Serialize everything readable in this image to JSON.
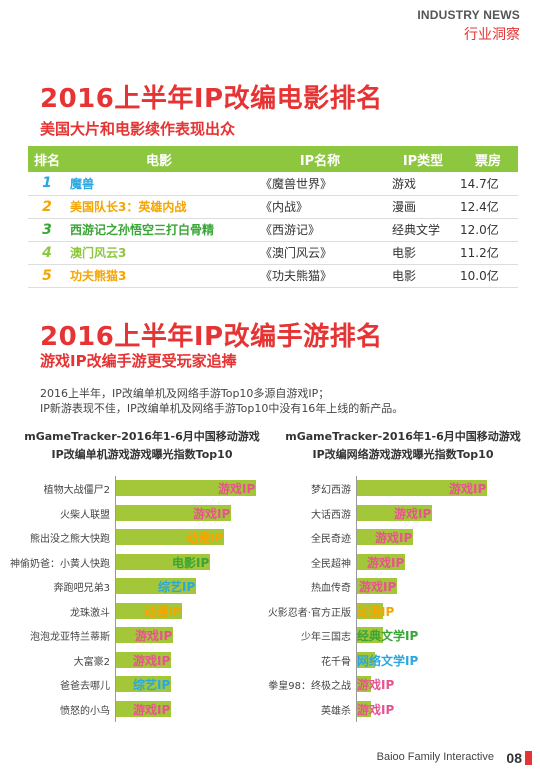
{
  "header": {
    "en": "INDUSTRY NEWS",
    "cn": "行业洞察"
  },
  "section1": {
    "title": "2016上半年IP改编电影排名",
    "subtitle": "美国大片和电影续作表现出众",
    "columns": [
      "排名",
      "电影",
      "IP名称",
      "IP类型",
      "票房"
    ],
    "rows": [
      {
        "rank": "1",
        "film": "魔兽",
        "ip": "《魔兽世界》",
        "type": "游戏",
        "box": "14.7亿",
        "color": "#29a8df"
      },
      {
        "rank": "2",
        "film": "美国队长3：英雄内战",
        "ip": "《内战》",
        "type": "漫画",
        "box": "12.4亿",
        "color": "#f5a500"
      },
      {
        "rank": "3",
        "film": "西游记之孙悟空三打白骨精",
        "ip": "《西游记》",
        "type": "经典文学",
        "box": "12.0亿",
        "color": "#3aa537"
      },
      {
        "rank": "4",
        "film": "澳门风云3",
        "ip": "《澳门风云》",
        "type": "电影",
        "box": "11.2亿",
        "color": "#8dc63f"
      },
      {
        "rank": "5",
        "film": "功夫熊猫3",
        "ip": "《功夫熊猫》",
        "type": "电影",
        "box": "10.0亿",
        "color": "#f5a500"
      }
    ]
  },
  "section2": {
    "title": "2016上半年IP改编手游排名",
    "subtitle": "游戏IP改编手游更受玩家追捧",
    "para1": "2016上半年，IP改编单机及网络手游Top10多源自游戏IP；",
    "para2": "IP新游表现不佳，IP改编单机及网络手游Top10中没有16年上线的新产品。"
  },
  "tag_colors": {
    "游戏IP": "#e8538f",
    "动漫IP": "#f5a500",
    "电影IP": "#3aa537",
    "综艺IP": "#29a8df",
    "经典文学IP": "#3aa537",
    "网络文学IP": "#29a8df"
  },
  "chart_data": [
    {
      "type": "bar",
      "title": "mGameTracker-2016年1-6月中国移动游戏",
      "subtitle": "IP改编单机游戏游戏曝光指数Top10",
      "categories": [
        "植物大战僵尸2",
        "火柴人联盟",
        "熊出没之熊大快跑",
        "神偷奶爸：小黄人快跑",
        "奔跑吧兄弟3",
        "龙珠激斗",
        "泡泡龙亚特兰蒂斯",
        "大富豪2",
        "爸爸去哪儿",
        "愤怒的小鸟"
      ],
      "values": [
        100,
        82,
        77,
        67,
        57,
        47,
        41,
        39,
        39,
        39
      ],
      "tags": [
        "游戏IP",
        "游戏IP",
        "动漫IP",
        "电影IP",
        "综艺IP",
        "动漫IP",
        "游戏IP",
        "游戏IP",
        "综艺IP",
        "游戏IP"
      ]
    },
    {
      "type": "bar",
      "title": "mGameTracker-2016年1-6月中国移动游戏",
      "subtitle": "IP改编网络游戏游戏曝光指数Top10",
      "categories": [
        "梦幻西游",
        "大话西游",
        "全民奇迹",
        "全民超神",
        "热血传奇",
        "火影忍者·官方正版",
        "少年三国志",
        "花千骨",
        "拳皇98：终极之战",
        "英雄杀"
      ],
      "values": [
        100,
        58,
        43,
        37,
        31,
        20,
        20,
        14,
        11,
        11
      ],
      "tags": [
        "游戏IP",
        "游戏IP",
        "游戏IP",
        "游戏IP",
        "游戏IP",
        "动漫IP",
        "经典文学IP",
        "网络文学IP",
        "游戏IP",
        "游戏IP"
      ]
    }
  ],
  "footer": {
    "company": "Baioo Family Interactive",
    "page": "08"
  }
}
